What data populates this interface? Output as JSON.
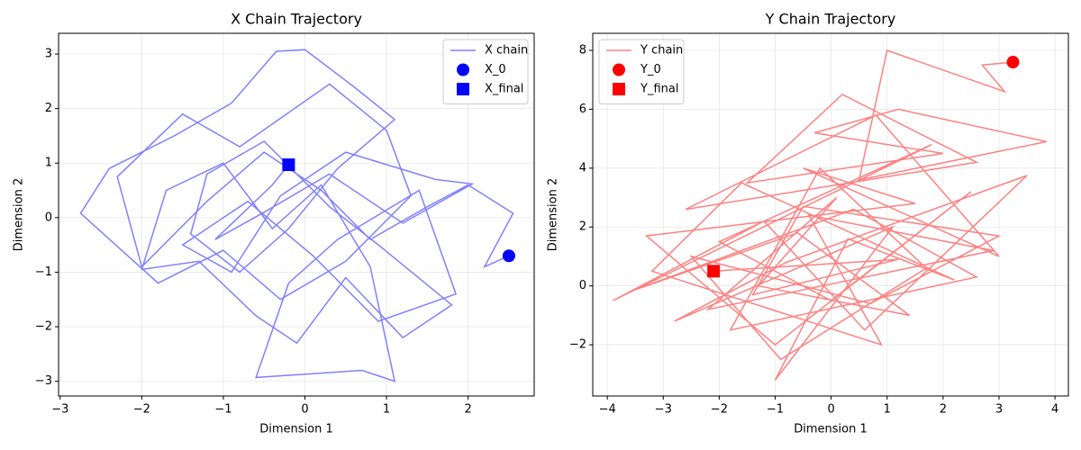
{
  "chart_data": [
    {
      "type": "line",
      "title": "X Chain Trajectory",
      "x_label": "Dimension 1",
      "y_label": "Dimension 2",
      "xlim": [
        -3.02,
        2.81
      ],
      "ylim": [
        -3.27,
        3.38
      ],
      "xticks": [
        {
          "value": -3,
          "label": "−3"
        },
        {
          "value": -2,
          "label": "−2"
        },
        {
          "value": -1,
          "label": "−1"
        },
        0,
        1,
        2
      ],
      "yticks": [
        {
          "value": -3,
          "label": "−3"
        },
        {
          "value": -2,
          "label": "−2"
        },
        {
          "value": -1,
          "label": "−1"
        },
        0,
        1,
        2,
        3
      ],
      "grid": true,
      "legend": "upper right",
      "series": [
        {
          "name": "X chain",
          "color": "#8080ff",
          "marker": "line",
          "x": [
            2.5,
            2.2,
            2.55,
            2.0,
            1.5,
            0.8,
            0.2,
            -0.5,
            -1.2,
            -2.0,
            -2.3,
            -1.5,
            -0.8,
            0.3,
            1.0,
            1.3,
            0.5,
            -0.3,
            -1.0,
            -1.8,
            -2.75,
            -2.4,
            -1.6,
            -0.9,
            -0.35,
            0.0,
            0.6,
            1.1,
            0.4,
            -0.2,
            -0.8,
            -1.4,
            -1.2,
            -0.5,
            0.3,
            0.9,
            1.8,
            1.2,
            0.5,
            -0.1,
            -0.6,
            -1.3,
            -2.0,
            -1.7,
            -1.0,
            -0.4,
            0.2,
            0.8,
            1.1,
            0.7,
            -0.6,
            -0.2,
            0.4,
            1.4,
            1.85,
            0.9,
            0.1,
            -0.7,
            -1.5,
            -0.9,
            -0.3,
            0.5,
            1.6,
            2.05,
            1.2,
            0.3,
            -0.5,
            -1.1,
            -0.4,
            -0.2
          ],
          "values": [
            -0.7,
            -0.9,
            0.08,
            0.6,
            0.2,
            -0.4,
            0.5,
            1.2,
            0.3,
            -0.9,
            0.75,
            1.9,
            1.3,
            2.45,
            1.6,
            0.4,
            -0.8,
            -1.5,
            -0.6,
            -1.2,
            0.08,
            0.9,
            1.5,
            2.1,
            3.05,
            3.08,
            2.4,
            1.8,
            0.9,
            -0.2,
            -1.0,
            -0.3,
            0.8,
            1.4,
            0.2,
            -0.5,
            -1.6,
            -2.2,
            -1.1,
            -2.3,
            -1.8,
            -0.8,
            -0.95,
            0.5,
            1.0,
            -0.2,
            0.6,
            -0.9,
            -3.0,
            -2.8,
            -2.93,
            -1.2,
            -0.4,
            0.5,
            -1.4,
            -1.9,
            -0.7,
            0.3,
            -0.5,
            -1.0,
            0.4,
            1.2,
            0.7,
            0.62,
            -0.1,
            0.8,
            0.1,
            -0.4,
            0.6,
            0.97
          ]
        },
        {
          "name": "X_0",
          "color": "#0000ff",
          "marker": "circle",
          "x": [
            2.5
          ],
          "values": [
            -0.7
          ]
        },
        {
          "name": "X_final",
          "color": "#0000ff",
          "marker": "square",
          "x": [
            -0.2
          ],
          "values": [
            0.97
          ]
        }
      ]
    },
    {
      "type": "line",
      "title": "Y Chain Trajectory",
      "x_label": "Dimension 1",
      "y_label": "Dimension 2",
      "xlim": [
        -4.26,
        4.24
      ],
      "ylim": [
        -3.74,
        8.58
      ],
      "xticks": [
        {
          "value": -4,
          "label": "−4"
        },
        {
          "value": -3,
          "label": "−3"
        },
        {
          "value": -2,
          "label": "−2"
        },
        {
          "value": -1,
          "label": "−1"
        },
        0,
        1,
        2,
        3,
        4
      ],
      "yticks": [
        {
          "value": -2,
          "label": "−2"
        },
        0,
        2,
        4,
        6,
        8
      ],
      "grid": true,
      "legend": "upper left",
      "series": [
        {
          "name": "Y chain",
          "color": "#ff8080",
          "marker": "line",
          "x": [
            3.25,
            2.7,
            3.1,
            1.0,
            0.5,
            3.85,
            1.2,
            -0.3,
            2.0,
            -1.5,
            0.2,
            2.6,
            -2.6,
            0.8,
            3.0,
            -0.5,
            1.5,
            -3.3,
            -1.0,
            2.5,
            0.0,
            -2.0,
            1.8,
            -3.9,
            -1.2,
            0.6,
            3.5,
            -0.8,
            -2.8,
            1.1,
            -1.0,
            0.3,
            2.2,
            -1.6,
            -3.2,
            0.9,
            -0.4,
            2.9,
            -2.2,
            0.1,
            -1.3,
            1.4,
            -0.6,
            -3.6,
            0.4,
            2.6,
            -1.8,
            -0.2,
            1.7,
            -0.9,
            -2.5,
            0.7,
            3.0,
            -0.5,
            -1.4,
            1.2,
            -2.1
          ],
          "values": [
            7.6,
            7.5,
            6.6,
            8.0,
            3.6,
            4.9,
            6.0,
            5.2,
            4.5,
            3.5,
            6.5,
            4.2,
            2.6,
            5.8,
            1.0,
            4.0,
            2.8,
            1.7,
            -2.0,
            3.2,
            -0.5,
            1.5,
            4.8,
            -0.5,
            2.2,
            -1.5,
            3.75,
            0.8,
            -1.2,
            2.0,
            -3.2,
            1.6,
            0.2,
            3.5,
            0.5,
            -2.0,
            2.4,
            1.2,
            -0.8,
            3.0,
            0.0,
            -1.0,
            1.8,
            -0.2,
            2.6,
            0.3,
            -1.5,
            4.0,
            0.6,
            -2.5,
            1.0,
            -0.6,
            1.7,
            2.7,
            -0.3,
            0.9,
            0.5
          ]
        },
        {
          "name": "Y_0",
          "color": "#ff0000",
          "marker": "circle",
          "x": [
            3.25
          ],
          "values": [
            7.6
          ]
        },
        {
          "name": "Y_final",
          "color": "#ff0000",
          "marker": "square",
          "x": [
            -2.1
          ],
          "values": [
            0.5
          ]
        }
      ]
    }
  ]
}
